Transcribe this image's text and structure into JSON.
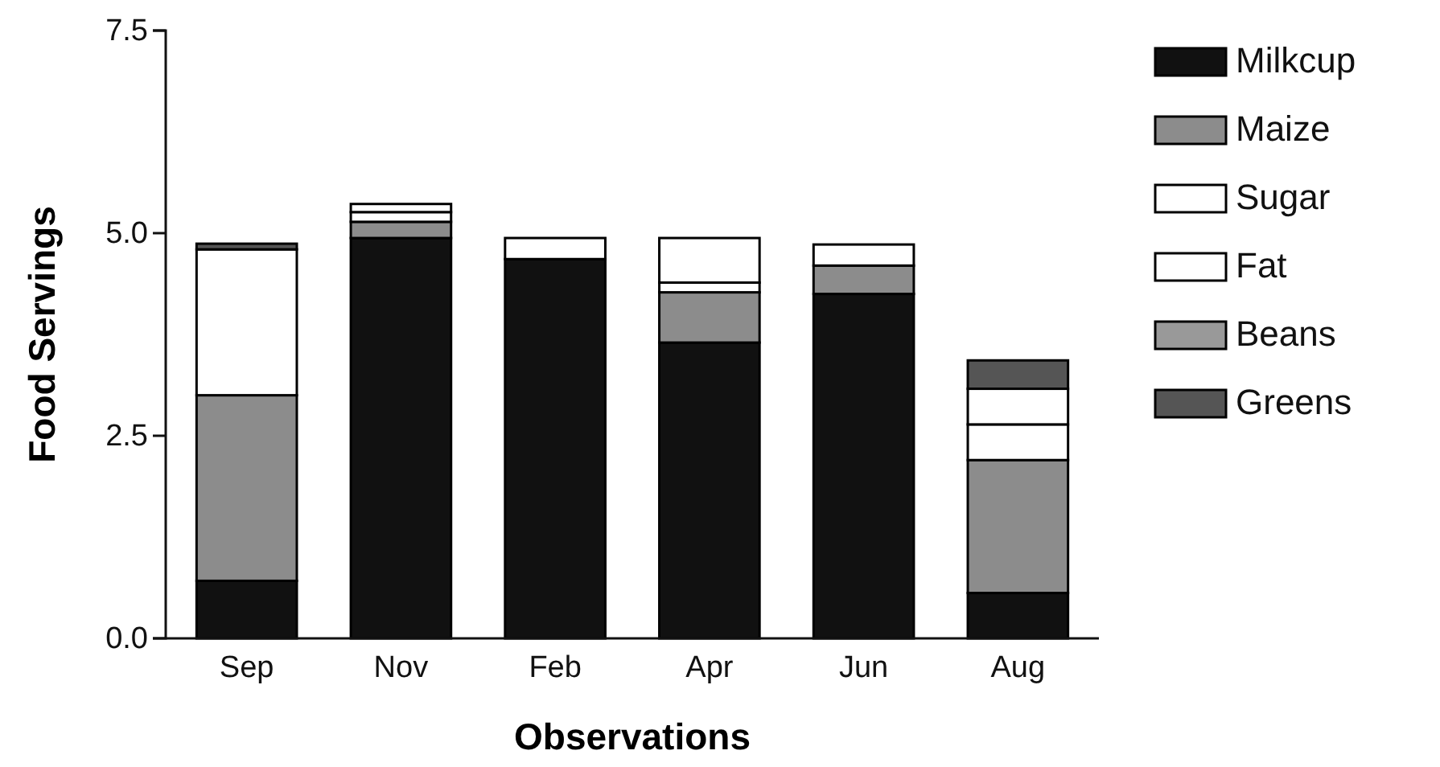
{
  "chart_data": {
    "type": "bar",
    "stacked": true,
    "xlabel": "Observations",
    "ylabel": "Food Servings",
    "categories": [
      "Sep",
      "Nov",
      "Feb",
      "Apr",
      "Jun",
      "Aug"
    ],
    "series": [
      {
        "name": "Milkcup",
        "color": "#111111",
        "values": [
          0.71,
          4.94,
          4.68,
          3.65,
          4.25,
          0.56
        ]
      },
      {
        "name": "Maize",
        "color": "#8c8c8c",
        "values": [
          2.29,
          0.2,
          0,
          0.62,
          0.35,
          1.64
        ]
      },
      {
        "name": "Sugar",
        "color": "#ffffff",
        "values": [
          1.8,
          0.12,
          0.26,
          0.12,
          0,
          0.44
        ]
      },
      {
        "name": "Fat",
        "color": "#ffffff",
        "values": [
          0,
          0.1,
          0,
          0.55,
          0.26,
          0.44
        ]
      },
      {
        "name": "Beans",
        "color": "#999999",
        "values": [
          0,
          0,
          0,
          0,
          0,
          0
        ]
      },
      {
        "name": "Greens",
        "color": "#555555",
        "values": [
          0.07,
          0,
          0,
          0,
          0,
          0.35
        ]
      }
    ],
    "ylim": [
      0,
      7.5
    ],
    "yticks": [
      {
        "value": 0,
        "label": "0.0"
      },
      {
        "value": 2.5,
        "label": "2.5"
      },
      {
        "value": 5,
        "label": "5.0"
      },
      {
        "value": 7.5,
        "label": "7.5"
      }
    ],
    "legend": "top right"
  }
}
